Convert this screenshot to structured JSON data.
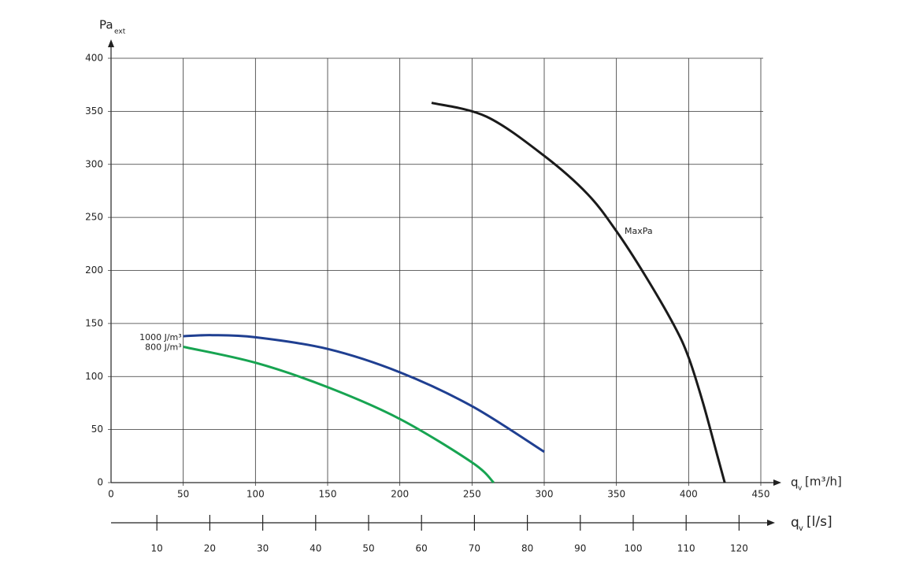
{
  "chart_data": {
    "type": "line",
    "y_label": "Pa",
    "y_label_sub": "ext",
    "x_label": "q",
    "x_label_sub": "v",
    "x_unit": "[m³/h]",
    "x2_label": "q",
    "x2_label_sub": "v",
    "x2_unit": "[l/s]",
    "xlim": [
      0,
      450
    ],
    "xticks": [
      0,
      50,
      100,
      150,
      200,
      250,
      300,
      350,
      400,
      450
    ],
    "ylim": [
      0,
      400
    ],
    "yticks": [
      0,
      50,
      100,
      150,
      200,
      250,
      300,
      350,
      400
    ],
    "x2lim": [
      0,
      125
    ],
    "x2ticks": [
      10,
      20,
      30,
      40,
      50,
      60,
      70,
      80,
      90,
      100,
      110,
      120
    ],
    "grid": true,
    "series": [
      {
        "name": "MaxPa",
        "color": "#1a1a1a",
        "x": [
          222,
          260,
          300,
          330,
          350,
          370,
          390,
          400,
          410,
          420,
          425
        ],
        "values": [
          358,
          345,
          308,
          272,
          237,
          195,
          148,
          118,
          75,
          25,
          0
        ]
      },
      {
        "name": "1000 J/m³",
        "color": "#1f3f91",
        "x": [
          50,
          70,
          100,
          150,
          200,
          250,
          300
        ],
        "values": [
          138,
          139,
          137,
          126,
          104,
          72,
          29
        ]
      },
      {
        "name": "800 J/m³",
        "color": "#17a451",
        "x": [
          50,
          100,
          150,
          200,
          250,
          265
        ],
        "values": [
          128,
          113,
          90,
          60,
          19,
          0
        ]
      }
    ]
  }
}
